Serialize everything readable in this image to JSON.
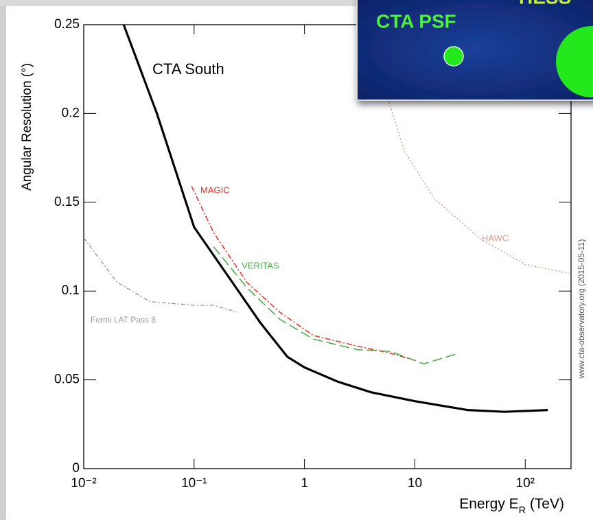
{
  "chart_data": {
    "type": "line",
    "x_label": {
      "text": "Energy E",
      "subscript": "R",
      "unit": "(TeV)"
    },
    "y_label": "Angular Resolution (°)",
    "watermark": "www.cta-observatory.org (2015-05-11)",
    "log_x": true,
    "xlim": [
      0.01,
      260
    ],
    "ylim": [
      0,
      0.25
    ],
    "xticks": [
      {
        "value": 0.01,
        "label": "10⁻²"
      },
      {
        "value": 0.1,
        "label": "10⁻¹"
      },
      1,
      10,
      {
        "value": 100,
        "label": "10²"
      }
    ],
    "yticks": [
      0,
      0.05,
      0.1,
      0.15,
      0.2,
      0.25
    ],
    "series": [
      {
        "name": "CTA South",
        "color": "#000000",
        "x": [
          0.023,
          0.046,
          0.1,
          0.2,
          0.4,
          0.7,
          1,
          2,
          4,
          10,
          30,
          65,
          160
        ],
        "values": [
          0.25,
          0.2,
          0.136,
          0.109,
          0.082,
          0.063,
          0.057,
          0.049,
          0.043,
          0.038,
          0.033,
          0.032,
          0.033
        ]
      },
      {
        "name": "MAGIC",
        "color": "#e8342a",
        "x": [
          0.095,
          0.15,
          0.3,
          0.6,
          1.2,
          3,
          6,
          10
        ],
        "values": [
          0.159,
          0.133,
          0.105,
          0.088,
          0.075,
          0.069,
          0.065,
          0.061
        ]
      },
      {
        "name": "VERITAS",
        "color": "#4cae4c",
        "x": [
          0.15,
          0.3,
          0.6,
          1.2,
          3,
          6,
          12,
          25
        ],
        "values": [
          0.125,
          0.102,
          0.084,
          0.073,
          0.067,
          0.066,
          0.059,
          0.065
        ]
      },
      {
        "name": "Fermi LAT Pass 8",
        "color": "#9a9a9a",
        "x": [
          0.01,
          0.02,
          0.04,
          0.1,
          0.15,
          0.25
        ],
        "values": [
          0.13,
          0.105,
          0.094,
          0.092,
          0.092,
          0.088
        ]
      },
      {
        "name": "HAWC",
        "color": "#d99a94",
        "x": [
          5.6,
          8,
          15,
          40,
          100,
          250
        ],
        "values": [
          0.21,
          0.179,
          0.152,
          0.129,
          0.115,
          0.11
        ]
      }
    ],
    "inset": {
      "label": "CTA PSF",
      "label_2": "HESS"
    }
  }
}
